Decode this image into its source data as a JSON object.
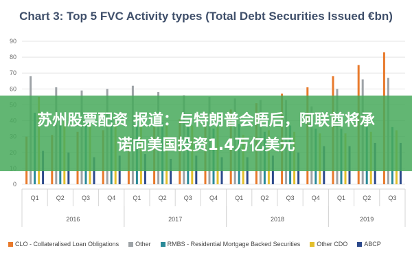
{
  "banner": {
    "line1": "苏州股票配资 报道：与特朗普会晤后，阿联酋将承",
    "line2": "诺向美国投资1.4万亿美元"
  },
  "chart_data": {
    "type": "bar",
    "title": "Chart 3: Top 5 FVC Activity types (Total Debt Securities Issued €bn)",
    "ylim": [
      0,
      90
    ],
    "yticks": [
      0,
      10,
      20,
      30,
      40,
      50,
      60,
      70,
      80,
      90
    ],
    "grid": true,
    "legend_position": "bottom",
    "categories": [
      "Q1",
      "Q2",
      "Q3",
      "Q4",
      "Q1",
      "Q2",
      "Q3",
      "Q4",
      "Q1",
      "Q2",
      "Q3",
      "Q4",
      "Q1",
      "Q2",
      "Q3"
    ],
    "groups": [
      {
        "label": "2016",
        "count": 4
      },
      {
        "label": "2017",
        "count": 4
      },
      {
        "label": "2018",
        "count": 4
      },
      {
        "label": "2019",
        "count": 3
      }
    ],
    "series": [
      {
        "name": "CLO - Collateralised Loan Obligations",
        "color": "#e87a2c",
        "values": [
          30,
          31,
          33,
          34,
          29,
          36,
          41,
          45,
          47,
          51,
          57,
          61,
          68,
          75,
          83
        ]
      },
      {
        "name": "Other",
        "color": "#9ea3a7",
        "values": [
          68,
          61,
          59,
          60,
          62,
          58,
          56,
          55,
          54,
          53,
          53,
          49,
          60,
          66,
          67
        ]
      },
      {
        "name": "RMBS - Residential Mortgage Backed Securities",
        "color": "#2a8a98",
        "values": [
          45,
          45,
          41,
          40,
          40,
          39,
          36,
          35,
          38,
          33,
          37,
          35,
          35,
          37,
          36
        ]
      },
      {
        "name": "Other CDO",
        "color": "#e3bf2c",
        "values": [
          55,
          40,
          38,
          39,
          38,
          37,
          37,
          36,
          31,
          34,
          33,
          32,
          32,
          33,
          34
        ]
      },
      {
        "name": "ABCP",
        "color": "#2d4a8c",
        "values": [
          21,
          20,
          17,
          18,
          19,
          16,
          18,
          17,
          17,
          18,
          20,
          24,
          24,
          26,
          26
        ]
      }
    ]
  }
}
